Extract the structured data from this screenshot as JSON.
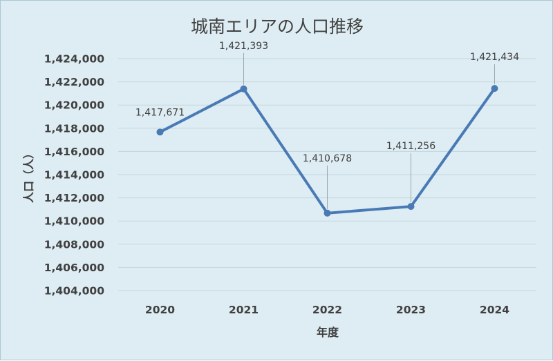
{
  "chart_data": {
    "type": "line",
    "title": "城南エリアの人口推移",
    "xlabel": "年度",
    "ylabel": "人口（人）",
    "categories": [
      "2020",
      "2021",
      "2022",
      "2023",
      "2024"
    ],
    "series": [
      {
        "values": [
          1417671,
          1421393,
          1410678,
          1411256,
          1421434
        ],
        "data_labels": [
          "1,417,671",
          "1,421,393",
          "1,410,678",
          "1,411,256",
          "1,421,434"
        ]
      }
    ],
    "ylim": [
      1404000,
      1424000
    ],
    "yticks": [
      "1,404,000",
      "1,406,000",
      "1,408,000",
      "1,410,000",
      "1,412,000",
      "1,414,000",
      "1,416,000",
      "1,418,000",
      "1,420,000",
      "1,422,000",
      "1,424,000"
    ],
    "grid": true,
    "legend": "none"
  },
  "colors": {
    "background": "#deedf3",
    "series_line": "#4a7ab5",
    "gridline": "#c3d6de"
  }
}
